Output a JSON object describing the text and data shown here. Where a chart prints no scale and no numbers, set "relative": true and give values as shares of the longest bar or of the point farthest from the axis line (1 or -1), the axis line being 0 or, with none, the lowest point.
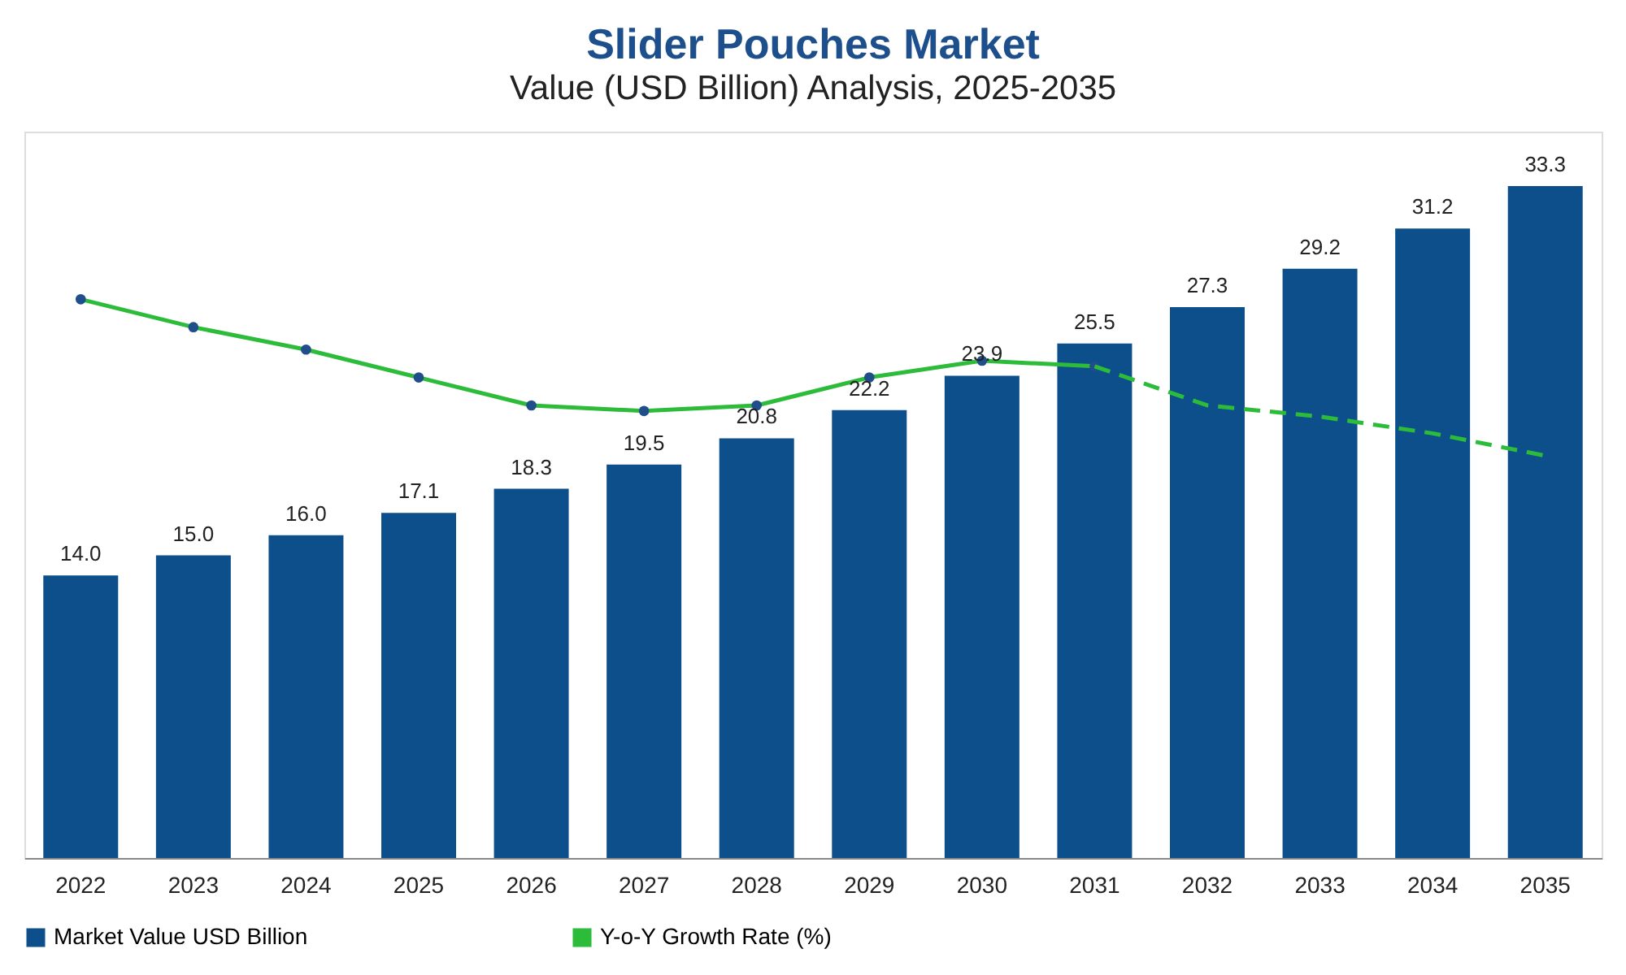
{
  "chart_data": [
    {
      "type": "bar",
      "title": "Slider Pouches Market",
      "subtitle": "Value (USD Billion) Analysis, 2025-2035",
      "categories": [
        "2022",
        "2023",
        "2024",
        "2025",
        "2026",
        "2027",
        "2028",
        "2029",
        "2030",
        "2031",
        "2032",
        "2033",
        "2034",
        "2035"
      ],
      "series": [
        {
          "name": "Market Value USD Billion",
          "color": "#0d4f8b",
          "values": [
            14.0,
            15.0,
            16.0,
            17.1,
            18.3,
            19.5,
            20.8,
            22.2,
            23.9,
            25.5,
            27.3,
            29.2,
            31.2,
            33.3
          ],
          "value_labels": [
            "14.0",
            "15.0",
            "16.0",
            "17.1",
            "18.3",
            "19.5",
            "20.8",
            "22.2",
            "23.9",
            "25.5",
            "27.3",
            "29.2",
            "31.2",
            "33.3"
          ]
        }
      ],
      "ylim": [
        0,
        36
      ],
      "tick_labels": "x",
      "legend": "bottom"
    },
    {
      "type": "line",
      "relative": true,
      "categories": [
        "2022",
        "2023",
        "2024",
        "2025",
        "2026",
        "2027",
        "2028",
        "2029",
        "2030",
        "2031",
        "2032",
        "2033",
        "2034",
        "2035"
      ],
      "series": [
        {
          "name": "Y-o-Y Growth Rate (%)",
          "color": "#2dbb3a",
          "marker": "circle",
          "line_style": "solid",
          "values": [
            1,
            0.95,
            0.91,
            0.86,
            0.81,
            0.8,
            0.81,
            0.86,
            0.89,
            0.88,
            null,
            null,
            null,
            null
          ]
        },
        {
          "color": "#2dbb3a",
          "marker": "none",
          "line_style": "dashed",
          "values": [
            null,
            null,
            null,
            null,
            null,
            null,
            null,
            null,
            null,
            0.88,
            0.81,
            0.79,
            0.76,
            0.72
          ]
        }
      ],
      "tick_labels": false,
      "legend": "bottom"
    }
  ]
}
